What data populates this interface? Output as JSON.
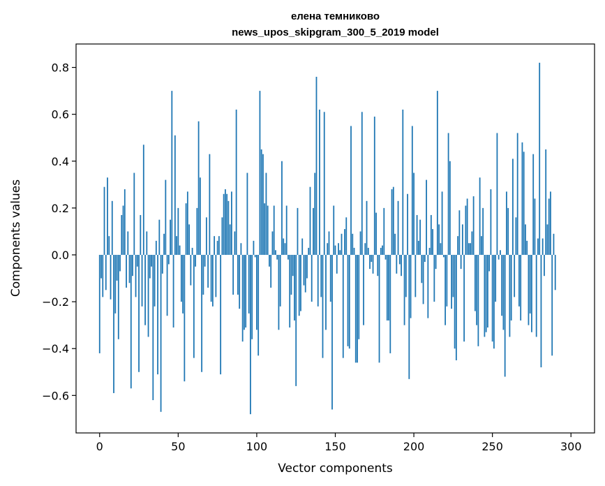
{
  "chart_data": {
    "type": "bar",
    "title_line1": "елена темниково",
    "title_line2": "news_upos_skipgram_300_5_2019 model",
    "xlabel": "Vector components",
    "ylabel": "Components values",
    "xlim": [
      -15,
      315
    ],
    "ylim": [
      -0.76,
      0.9
    ],
    "xticks": [
      0,
      50,
      100,
      150,
      200,
      250,
      300
    ],
    "xtick_labels": [
      "0",
      "50",
      "100",
      "150",
      "200",
      "250",
      "300"
    ],
    "yticks": [
      -0.6,
      -0.4,
      -0.2,
      0.0,
      0.2,
      0.4,
      0.6,
      0.8
    ],
    "ytick_labels": [
      "−0.6",
      "−0.4",
      "−0.2",
      "0.0",
      "0.2",
      "0.4",
      "0.6",
      "0.8"
    ],
    "bar_color": "#1f77b4",
    "grid": false,
    "values": [
      -0.42,
      -0.1,
      -0.18,
      0.29,
      -0.15,
      0.33,
      0.08,
      -0.19,
      0.23,
      -0.59,
      -0.25,
      -0.11,
      -0.36,
      -0.07,
      0.17,
      0.21,
      0.28,
      -0.14,
      0.1,
      -0.12,
      -0.57,
      -0.09,
      0.35,
      -0.18,
      -0.05,
      -0.5,
      0.17,
      -0.22,
      0.47,
      -0.3,
      0.1,
      -0.35,
      -0.1,
      -0.05,
      -0.62,
      -0.22,
      0.06,
      -0.51,
      0.15,
      -0.67,
      -0.08,
      0.09,
      0.32,
      -0.26,
      -0.04,
      0.15,
      0.7,
      -0.31,
      0.51,
      0.08,
      0.2,
      0.04,
      -0.2,
      -0.25,
      -0.54,
      0.22,
      0.27,
      0.13,
      -0.13,
      0.03,
      -0.44,
      -0.05,
      0.2,
      0.57,
      0.33,
      -0.5,
      -0.17,
      -0.05,
      0.16,
      -0.14,
      0.43,
      -0.2,
      -0.22,
      0.08,
      -0.18,
      0.06,
      0.08,
      -0.51,
      0.16,
      0.26,
      0.28,
      0.26,
      0.23,
      0.13,
      0.27,
      -0.17,
      0.1,
      0.62,
      -0.17,
      -0.23,
      0.05,
      -0.37,
      -0.32,
      -0.31,
      0.35,
      -0.25,
      -0.68,
      -0.36,
      0.06,
      -0.01,
      -0.32,
      -0.43,
      0.7,
      0.45,
      0.43,
      0.22,
      0.35,
      0.21,
      -0.05,
      -0.14,
      0.1,
      0.21,
      0.02,
      -0.02,
      -0.32,
      -0.22,
      0.4,
      0.07,
      0.05,
      0.21,
      -0.02,
      -0.31,
      -0.17,
      -0.09,
      -0.28,
      -0.56,
      0.2,
      -0.26,
      -0.24,
      0.07,
      -0.13,
      -0.16,
      -0.1,
      0.03,
      0.29,
      -0.2,
      0.2,
      0.35,
      0.76,
      -0.22,
      0.62,
      -0.18,
      -0.44,
      0.61,
      -0.32,
      0.05,
      0.1,
      -0.2,
      -0.66,
      0.21,
      0.04,
      -0.08,
      0.05,
      0.02,
      0.09,
      -0.44,
      0.11,
      0.16,
      -0.39,
      -0.4,
      0.55,
      0.09,
      0.03,
      -0.46,
      -0.46,
      -0.36,
      0.1,
      0.61,
      -0.3,
      0.05,
      0.23,
      0.03,
      -0.06,
      -0.03,
      -0.08,
      0.59,
      0.18,
      -0.09,
      -0.46,
      0.03,
      0.04,
      0.2,
      -0.02,
      -0.28,
      -0.28,
      -0.42,
      0.28,
      0.29,
      0.09,
      -0.08,
      0.23,
      -0.04,
      -0.09,
      0.62,
      -0.3,
      -0.18,
      0.26,
      -0.53,
      -0.27,
      0.55,
      0.35,
      -0.18,
      0.17,
      0.06,
      0.15,
      -0.12,
      -0.21,
      -0.03,
      0.32,
      -0.27,
      0.03,
      0.17,
      0.11,
      -0.2,
      -0.06,
      0.7,
      0.13,
      0.05,
      0.27,
      -0.01,
      -0.3,
      -0.22,
      0.52,
      0.4,
      -0.23,
      -0.18,
      -0.4,
      -0.45,
      0.08,
      0.19,
      -0.06,
      0.13,
      -0.37,
      0.21,
      0.24,
      0.05,
      0.05,
      0.1,
      0.25,
      -0.24,
      -0.3,
      -0.39,
      0.33,
      0.08,
      0.2,
      -0.35,
      -0.33,
      -0.31,
      -0.07,
      0.28,
      -0.37,
      -0.4,
      -0.2,
      0.52,
      -0.02,
      0.02,
      -0.26,
      -0.32,
      -0.52,
      0.27,
      0.2,
      -0.35,
      -0.28,
      0.41,
      -0.18,
      0.16,
      0.52,
      -0.22,
      -0.28,
      0.48,
      0.44,
      0.13,
      0.06,
      -0.3,
      -0.25,
      -0.33,
      0.43,
      0.24,
      -0.35,
      0.07,
      0.82,
      -0.48,
      0.07,
      -0.09,
      0.45,
      0.13,
      0.24,
      0.27,
      -0.43,
      0.09,
      -0.15
    ]
  }
}
